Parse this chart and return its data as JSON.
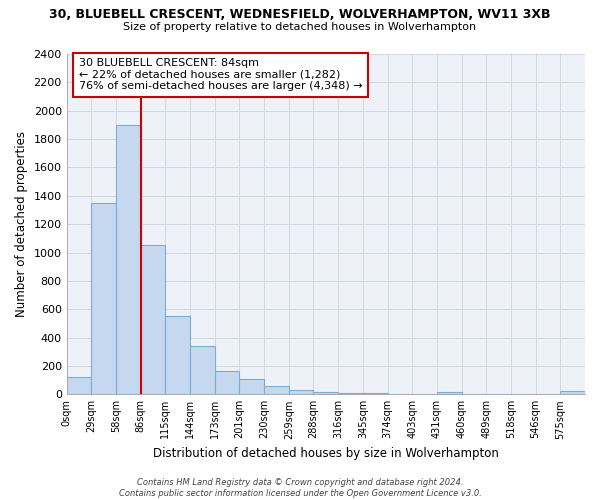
{
  "title1": "30, BLUEBELL CRESCENT, WEDNESFIELD, WOLVERHAMPTON, WV11 3XB",
  "title2": "Size of property relative to detached houses in Wolverhampton",
  "xlabel": "Distribution of detached houses by size in Wolverhampton",
  "ylabel": "Number of detached properties",
  "bin_labels": [
    "0sqm",
    "29sqm",
    "58sqm",
    "86sqm",
    "115sqm",
    "144sqm",
    "173sqm",
    "201sqm",
    "230sqm",
    "259sqm",
    "288sqm",
    "316sqm",
    "345sqm",
    "374sqm",
    "403sqm",
    "431sqm",
    "460sqm",
    "489sqm",
    "518sqm",
    "546sqm",
    "575sqm"
  ],
  "bar_heights": [
    125,
    1350,
    1900,
    1050,
    550,
    340,
    165,
    110,
    60,
    30,
    18,
    12,
    8,
    5,
    3,
    15,
    3,
    2,
    2,
    2,
    20
  ],
  "bar_color": "#c5d8f0",
  "bar_edge_color": "#7aadd4",
  "vline_position": 3,
  "vline_color": "#cc0000",
  "annotation_text": "30 BLUEBELL CRESCENT: 84sqm\n← 22% of detached houses are smaller (1,282)\n76% of semi-detached houses are larger (4,348) →",
  "annotation_box_color": "#ffffff",
  "annotation_box_edge": "#cc0000",
  "ylim": [
    0,
    2400
  ],
  "yticks": [
    0,
    200,
    400,
    600,
    800,
    1000,
    1200,
    1400,
    1600,
    1800,
    2000,
    2200,
    2400
  ],
  "footer": "Contains HM Land Registry data © Crown copyright and database right 2024.\nContains public sector information licensed under the Open Government Licence v3.0.",
  "bg_color": "#ffffff",
  "grid_color": "#d0d8e4",
  "plot_bg_color": "#eef2f8"
}
